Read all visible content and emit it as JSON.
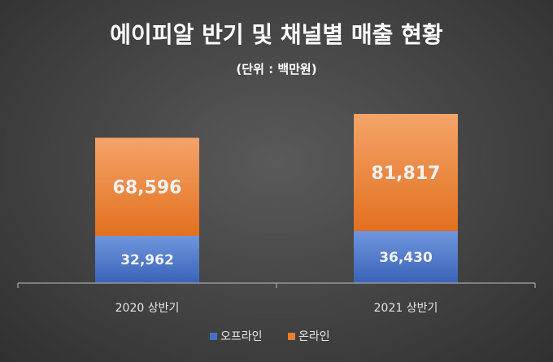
{
  "chart_data": {
    "type": "bar",
    "stacked": true,
    "title": "에이피알 반기 및 채널별 매출 현황",
    "subtitle": "(단위 : 백만원)",
    "categories": [
      "2020 상반기",
      "2021 상반기"
    ],
    "series": [
      {
        "name": "오프라인",
        "values": [
          32962,
          36430
        ],
        "labels": [
          "32,962",
          "36,430"
        ],
        "color": "#4472c4"
      },
      {
        "name": "온라인",
        "values": [
          68596,
          81817
        ],
        "labels": [
          "68,596",
          "81,817"
        ],
        "color": "#ed7d31"
      }
    ],
    "ylim": [
      0,
      118247
    ],
    "grid": false,
    "legend": "bottom"
  }
}
